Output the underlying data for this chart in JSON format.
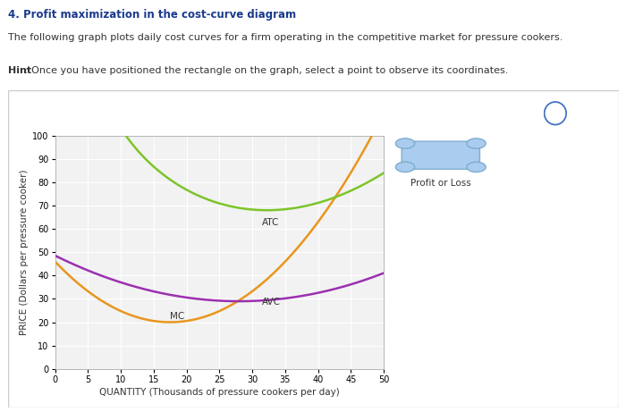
{
  "title_bold": "4. Profit maximization in the cost-curve diagram",
  "subtitle": "The following graph plots daily cost curves for a firm operating in the competitive market for pressure cookers.",
  "hint_bold": "Hint",
  "hint_rest": ": Once you have positioned the rectangle on the graph, select a point to observe its coordinates.",
  "xlabel": "QUANTITY (Thousands of pressure cookers per day)",
  "ylabel": "PRICE (Dollars per pressure cooker)",
  "xlim": [
    0,
    50
  ],
  "ylim": [
    0,
    100
  ],
  "xticks": [
    0,
    5,
    10,
    15,
    20,
    25,
    30,
    35,
    40,
    45,
    50
  ],
  "yticks": [
    0,
    10,
    20,
    30,
    40,
    50,
    60,
    70,
    80,
    90,
    100
  ],
  "mc_color": "#E8961E",
  "atc_color": "#7DC42A",
  "avc_color": "#9B30B0",
  "bg_color": "#FFFFFF",
  "plot_bg": "#F2F2F2",
  "grid_color": "#FFFFFF",
  "legend_label": "Profit or Loss",
  "legend_box_color": "#AACCEE",
  "question_mark_color": "#4472C4",
  "title_color": "#1a3a8c",
  "text_color": "#333333",
  "frame_color": "#CCCCCC"
}
